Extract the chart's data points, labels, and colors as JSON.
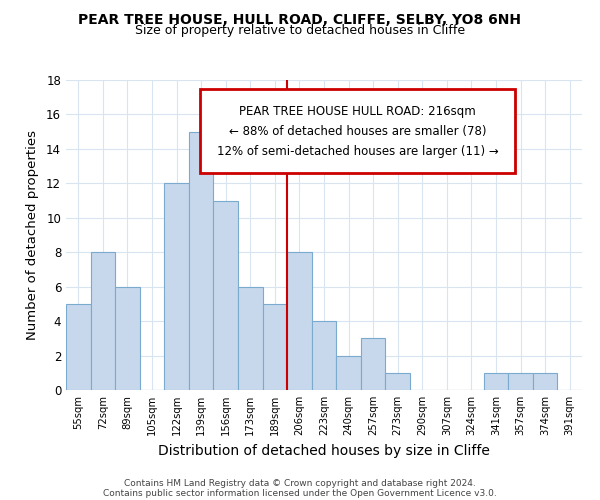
{
  "title1": "PEAR TREE HOUSE, HULL ROAD, CLIFFE, SELBY, YO8 6NH",
  "title2": "Size of property relative to detached houses in Cliffe",
  "xlabel": "Distribution of detached houses by size in Cliffe",
  "ylabel": "Number of detached properties",
  "categories": [
    "55sqm",
    "72sqm",
    "89sqm",
    "105sqm",
    "122sqm",
    "139sqm",
    "156sqm",
    "173sqm",
    "189sqm",
    "206sqm",
    "223sqm",
    "240sqm",
    "257sqm",
    "273sqm",
    "290sqm",
    "307sqm",
    "324sqm",
    "341sqm",
    "357sqm",
    "374sqm",
    "391sqm"
  ],
  "values": [
    5,
    8,
    6,
    0,
    12,
    15,
    11,
    6,
    5,
    8,
    4,
    2,
    3,
    1,
    0,
    0,
    0,
    1,
    1,
    1,
    0
  ],
  "bar_color": "#c8d8ec",
  "bar_edge_color": "#7aaace",
  "vline_after_index": 8,
  "vline_color": "#cc0000",
  "annotation_title": "PEAR TREE HOUSE HULL ROAD: 216sqm",
  "annotation_line1": "← 88% of detached houses are smaller (78)",
  "annotation_line2": "12% of semi-detached houses are larger (11) →",
  "annotation_box_color": "#cc0000",
  "annotation_bg_color": "#ffffff",
  "ylim": [
    0,
    18
  ],
  "yticks": [
    0,
    2,
    4,
    6,
    8,
    10,
    12,
    14,
    16,
    18
  ],
  "footer_line1": "Contains HM Land Registry data © Crown copyright and database right 2024.",
  "footer_line2": "Contains public sector information licensed under the Open Government Licence v3.0.",
  "bg_color": "#ffffff",
  "grid_color": "#d8e4f0"
}
